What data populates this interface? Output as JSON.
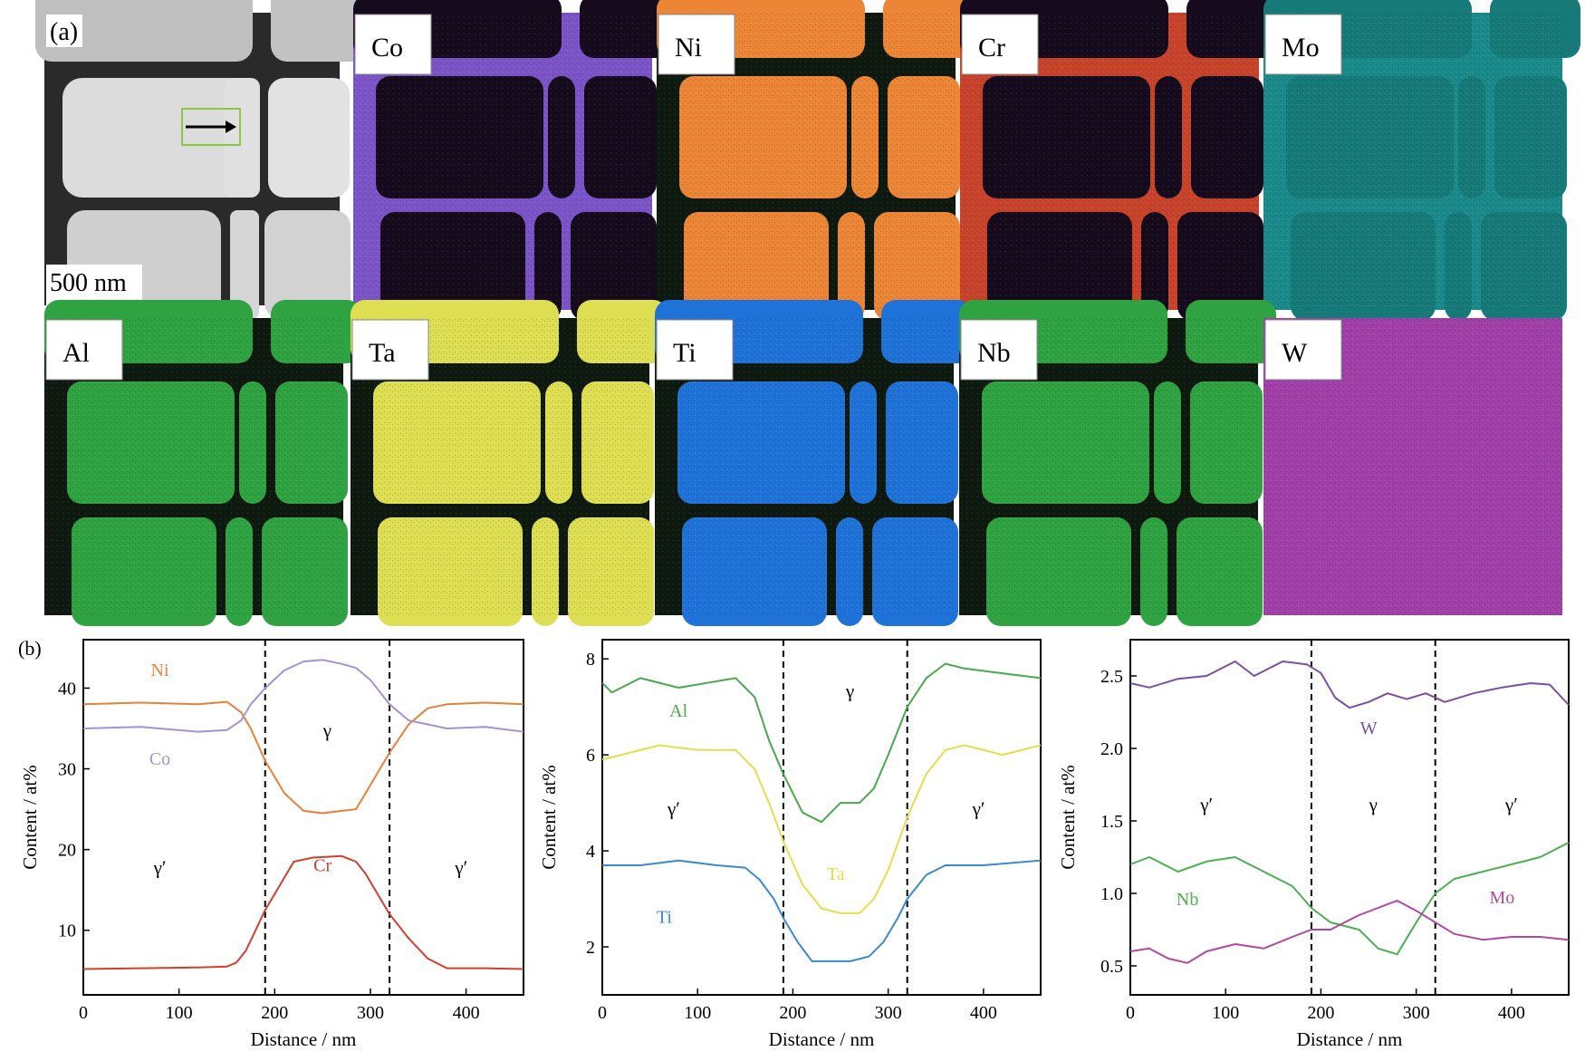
{
  "figure": {
    "panel_a_label": "(a)",
    "panel_b_label": "(b)",
    "scale_bar_label": "500 nm",
    "map_labels": [
      "Co",
      "Ni",
      "Cr",
      "Mo",
      "Al",
      "Ta",
      "Ti",
      "Nb",
      "W"
    ],
    "map_colors": {
      "Co": "#7b55c8",
      "Ni": "#ec8535",
      "Cr": "#c7432c",
      "Mo": "#2fc1bf",
      "Al": "#2fa341",
      "Ta": "#dede52",
      "Ti": "#1f73d8",
      "Nb": "#2fa341",
      "W": "#a040a8"
    }
  },
  "chart_data": [
    {
      "type": "line",
      "xlabel": "Distance / nm",
      "ylabel": "Content / at%",
      "xlim": [
        0,
        460
      ],
      "ylim": [
        2,
        46
      ],
      "xticks": [
        0,
        100,
        200,
        300,
        400
      ],
      "yticks": [
        10,
        20,
        30,
        40
      ],
      "boundaries": [
        190,
        320
      ],
      "phase_labels": [
        {
          "text": "γ",
          "x": 255,
          "y": 34
        },
        {
          "text": "γ′",
          "x": 80,
          "y": 17
        },
        {
          "text": "γ′",
          "x": 395,
          "y": 17
        }
      ],
      "series": [
        {
          "name": "Ni",
          "color": "#e8803a",
          "label_x": 80,
          "label_y": 41.5,
          "x": [
            0,
            60,
            120,
            150,
            165,
            175,
            190,
            210,
            230,
            250,
            270,
            285,
            300,
            320,
            340,
            360,
            380,
            420,
            460
          ],
          "y": [
            38,
            38.2,
            38,
            38.3,
            37,
            35,
            31,
            27,
            24.8,
            24.5,
            24.8,
            25,
            28,
            32,
            35.5,
            37.5,
            38,
            38.2,
            38
          ]
        },
        {
          "name": "Co",
          "color": "#a791d1",
          "label_x": 80,
          "label_y": 30.5,
          "x": [
            0,
            60,
            120,
            150,
            165,
            175,
            190,
            210,
            230,
            250,
            270,
            285,
            300,
            320,
            340,
            360,
            380,
            420,
            460
          ],
          "y": [
            35,
            35.2,
            34.6,
            34.8,
            36,
            38,
            40,
            42.2,
            43.3,
            43.5,
            43,
            42.5,
            41,
            38,
            36,
            35.5,
            35,
            35.2,
            34.6
          ]
        },
        {
          "name": "Cr",
          "color": "#d43e2f",
          "label_x": 250,
          "label_y": 17.3,
          "x": [
            0,
            60,
            120,
            150,
            160,
            170,
            180,
            190,
            205,
            220,
            240,
            270,
            285,
            295,
            310,
            320,
            340,
            360,
            380,
            420,
            460
          ],
          "y": [
            5.2,
            5.3,
            5.4,
            5.5,
            6,
            7.5,
            10,
            12.5,
            15.5,
            18.5,
            19,
            19.2,
            18.5,
            17,
            14,
            12,
            9,
            6.5,
            5.3,
            5.3,
            5.2
          ]
        }
      ]
    },
    {
      "type": "line",
      "xlabel": "Distance / nm",
      "ylabel": "Content / at%",
      "xlim": [
        0,
        460
      ],
      "ylim": [
        1,
        8.4
      ],
      "xticks": [
        0,
        100,
        200,
        300,
        400
      ],
      "yticks": [
        2,
        4,
        6,
        8
      ],
      "boundaries": [
        190,
        320
      ],
      "phase_labels": [
        {
          "text": "γ",
          "x": 260,
          "y": 7.2
        },
        {
          "text": "γ′",
          "x": 75,
          "y": 4.75
        },
        {
          "text": "γ′",
          "x": 395,
          "y": 4.75
        }
      ],
      "series": [
        {
          "name": "Al",
          "color": "#4aa84d",
          "label_x": 80,
          "label_y": 6.8,
          "x": [
            0,
            10,
            40,
            80,
            110,
            140,
            160,
            175,
            190,
            210,
            230,
            250,
            270,
            285,
            300,
            320,
            340,
            360,
            380,
            420,
            460
          ],
          "y": [
            7.5,
            7.3,
            7.6,
            7.4,
            7.5,
            7.6,
            7.2,
            6.3,
            5.6,
            4.8,
            4.6,
            5.0,
            5.0,
            5.3,
            6.0,
            7.0,
            7.6,
            7.9,
            7.8,
            7.7,
            7.6
          ]
        },
        {
          "name": "Ta",
          "color": "#e4de4c",
          "label_x": 245,
          "label_y": 3.4,
          "x": [
            0,
            20,
            60,
            100,
            140,
            160,
            175,
            190,
            210,
            230,
            250,
            270,
            285,
            300,
            320,
            340,
            360,
            380,
            420,
            460
          ],
          "y": [
            5.9,
            6.0,
            6.2,
            6.1,
            6.1,
            5.7,
            5.0,
            4.2,
            3.3,
            2.8,
            2.7,
            2.7,
            3.0,
            3.6,
            4.7,
            5.6,
            6.1,
            6.2,
            6.0,
            6.2
          ]
        },
        {
          "name": "Ti",
          "color": "#3c8acb",
          "label_x": 65,
          "label_y": 2.5,
          "x": [
            0,
            40,
            80,
            120,
            150,
            165,
            180,
            190,
            205,
            220,
            240,
            260,
            280,
            295,
            310,
            320,
            340,
            360,
            400,
            460
          ],
          "y": [
            3.7,
            3.7,
            3.8,
            3.7,
            3.65,
            3.4,
            3.0,
            2.6,
            2.1,
            1.7,
            1.7,
            1.7,
            1.8,
            2.1,
            2.6,
            3.0,
            3.5,
            3.7,
            3.7,
            3.8
          ]
        }
      ]
    },
    {
      "type": "line",
      "xlabel": "Distance / nm",
      "ylabel": "Content / at%",
      "xlim": [
        0,
        460
      ],
      "ylim": [
        0.3,
        2.75
      ],
      "xticks": [
        0,
        100,
        200,
        300,
        400
      ],
      "yticks": [
        0.5,
        1.0,
        1.5,
        2.0,
        2.5
      ],
      "ytick_labels": [
        "0.5",
        "1.0",
        "1.5",
        "2.0",
        "2.5"
      ],
      "boundaries": [
        190,
        320
      ],
      "phase_labels": [
        {
          "text": "γ′",
          "x": 80,
          "y": 1.57
        },
        {
          "text": "γ",
          "x": 255,
          "y": 1.57
        },
        {
          "text": "γ′",
          "x": 400,
          "y": 1.57
        }
      ],
      "series": [
        {
          "name": "W",
          "color": "#7a4fa3",
          "label_x": 250,
          "label_y": 2.1,
          "x": [
            0,
            20,
            50,
            80,
            110,
            130,
            160,
            185,
            200,
            215,
            230,
            250,
            270,
            290,
            310,
            330,
            360,
            390,
            420,
            440,
            460
          ],
          "y": [
            2.45,
            2.42,
            2.48,
            2.5,
            2.6,
            2.5,
            2.6,
            2.58,
            2.52,
            2.35,
            2.28,
            2.32,
            2.38,
            2.34,
            2.38,
            2.32,
            2.38,
            2.42,
            2.45,
            2.44,
            2.3
          ]
        },
        {
          "name": "Nb",
          "color": "#4caf50",
          "label_x": 60,
          "label_y": 0.92,
          "x": [
            0,
            20,
            50,
            80,
            110,
            140,
            170,
            190,
            210,
            240,
            260,
            280,
            300,
            320,
            340,
            370,
            400,
            430,
            460
          ],
          "y": [
            1.2,
            1.25,
            1.15,
            1.22,
            1.25,
            1.15,
            1.05,
            0.9,
            0.8,
            0.75,
            0.62,
            0.58,
            0.8,
            1.0,
            1.1,
            1.15,
            1.2,
            1.25,
            1.35
          ]
        },
        {
          "name": "Mo",
          "color": "#b0489f",
          "label_x": 390,
          "label_y": 0.93,
          "x": [
            0,
            20,
            40,
            60,
            80,
            110,
            140,
            170,
            190,
            210,
            240,
            260,
            280,
            300,
            320,
            340,
            370,
            400,
            430,
            460
          ],
          "y": [
            0.6,
            0.62,
            0.55,
            0.52,
            0.6,
            0.65,
            0.62,
            0.7,
            0.75,
            0.75,
            0.85,
            0.9,
            0.95,
            0.88,
            0.8,
            0.72,
            0.68,
            0.7,
            0.7,
            0.68
          ]
        }
      ]
    }
  ]
}
